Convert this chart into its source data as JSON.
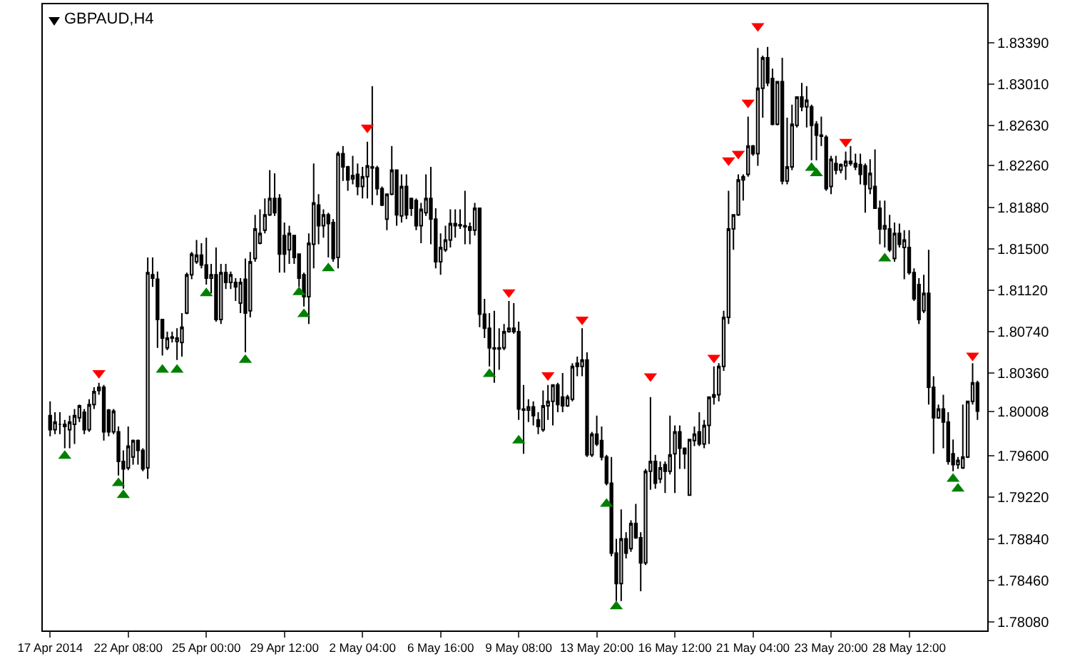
{
  "chart_data": {
    "type": "candlestick",
    "title": "GBPAUD,H4",
    "categories": [
      "17 Apr 2014",
      null,
      null,
      null,
      null,
      null,
      null,
      null,
      null,
      null,
      null,
      null,
      null,
      null,
      null,
      null,
      "22 Apr 08:00",
      null,
      null,
      null,
      null,
      null,
      null,
      null,
      null,
      null,
      null,
      null,
      null,
      null,
      null,
      null,
      "25 Apr 00:00",
      null,
      null,
      null,
      null,
      null,
      null,
      null,
      null,
      null,
      null,
      null,
      null,
      null,
      null,
      null,
      "29 Apr 12:00",
      null,
      null,
      null,
      null,
      null,
      null,
      null,
      null,
      null,
      null,
      null,
      null,
      null,
      null,
      null,
      "2 May 04:00",
      null,
      null,
      null,
      null,
      null,
      null,
      null,
      null,
      null,
      null,
      null,
      null,
      null,
      null,
      null,
      "6 May 16:00",
      null,
      null,
      null,
      null,
      null,
      null,
      null,
      null,
      null,
      null,
      null,
      null,
      null,
      null,
      null,
      "9 May 08:00",
      null,
      null,
      null,
      null,
      null,
      null,
      null,
      null,
      null,
      null,
      null,
      null,
      null,
      null,
      null,
      "13 May 20:00",
      null,
      null,
      null,
      null,
      null,
      null,
      null,
      null,
      null,
      null,
      null,
      null,
      null,
      null,
      null,
      "16 May 12:00",
      null,
      null,
      null,
      null,
      null,
      null,
      null,
      null,
      null,
      null,
      null,
      null,
      null,
      null,
      null,
      "21 May 04:00",
      null,
      null,
      null,
      null,
      null,
      null,
      null,
      null,
      null,
      null,
      null,
      null,
      null,
      null,
      null,
      "23 May 20:00",
      null,
      null,
      null,
      null,
      null,
      null,
      null,
      null,
      null,
      null,
      null,
      null,
      null,
      null,
      null,
      "28 May 12:00",
      null,
      null,
      null,
      null,
      null,
      null,
      null,
      null,
      null,
      null,
      null,
      null,
      null,
      null
    ],
    "ohlc": [
      [
        1.7997,
        1.801,
        1.7978,
        1.7984
      ],
      [
        1.7984,
        1.8,
        1.798,
        1.7991
      ],
      [
        1.7989,
        1.8,
        1.798,
        1.7989
      ],
      [
        1.7989,
        1.7993,
        1.7967,
        1.7987
      ],
      [
        1.7984,
        1.7997,
        1.7967,
        1.7991
      ],
      [
        1.7989,
        1.8003,
        1.7971,
        1.7997
      ],
      [
        1.7995,
        1.8007,
        1.7991,
        1.8006
      ],
      [
        1.8,
        1.8003,
        1.798,
        1.7984
      ],
      [
        1.7984,
        1.8012,
        1.7982,
        1.8007
      ],
      [
        1.8007,
        1.8023,
        1.8003,
        1.8019
      ],
      [
        1.802,
        1.8027,
        1.8016,
        1.8023
      ],
      [
        1.8023,
        1.8025,
        1.7974,
        1.7982
      ],
      [
        1.8002,
        1.8003,
        1.7978,
        1.7982
      ],
      [
        1.7982,
        1.8003,
        1.798,
        1.8001
      ],
      [
        1.7982,
        1.7987,
        1.7942,
        1.7955
      ],
      [
        1.7955,
        1.7965,
        1.793,
        1.7948
      ],
      [
        1.7949,
        1.7987,
        1.7947,
        1.7969
      ],
      [
        1.7959,
        1.7975,
        1.7952,
        1.7974
      ],
      [
        1.7974,
        1.7975,
        1.7952,
        1.7965
      ],
      [
        1.7965,
        1.7967,
        1.7946,
        1.7948
      ],
      [
        1.7949,
        1.8142,
        1.7939,
        1.8128
      ],
      [
        1.8126,
        1.8142,
        1.8115,
        1.8123
      ],
      [
        1.8122,
        1.8129,
        1.8059,
        1.8085
      ],
      [
        1.8085,
        1.8085,
        1.8052,
        1.8068
      ],
      [
        1.8059,
        1.8074,
        1.8057,
        1.8068
      ],
      [
        1.8069,
        1.8074,
        1.8064,
        1.8068
      ],
      [
        1.8065,
        1.8077,
        1.8048,
        1.8068
      ],
      [
        1.8064,
        1.8091,
        1.8051,
        1.8078
      ],
      [
        1.8091,
        1.8128,
        1.809,
        1.8126
      ],
      [
        1.8126,
        1.8147,
        1.8122,
        1.8145
      ],
      [
        1.8138,
        1.8158,
        1.8136,
        1.8144
      ],
      [
        1.8144,
        1.8155,
        1.8132,
        1.8135
      ],
      [
        1.8135,
        1.816,
        1.8117,
        1.8123
      ],
      [
        1.8123,
        1.8136,
        1.8109,
        1.8126
      ],
      [
        1.8126,
        1.8151,
        1.8083,
        1.8085
      ],
      [
        1.8085,
        1.8136,
        1.8081,
        1.8128
      ],
      [
        1.8128,
        1.8136,
        1.8113,
        1.8119
      ],
      [
        1.8119,
        1.8129,
        1.8113,
        1.8126
      ],
      [
        1.8119,
        1.8123,
        1.8102,
        1.8115
      ],
      [
        1.81,
        1.8123,
        1.8091,
        1.8119
      ],
      [
        1.8122,
        1.8141,
        1.8055,
        1.8091
      ],
      [
        1.8093,
        1.8147,
        1.8087,
        1.8138
      ],
      [
        1.8141,
        1.8181,
        1.8138,
        1.8168
      ],
      [
        1.8155,
        1.8186,
        1.8154,
        1.8164
      ],
      [
        1.8167,
        1.8196,
        1.8164,
        1.8181
      ],
      [
        1.8181,
        1.8222,
        1.818,
        1.8196
      ],
      [
        1.8196,
        1.8219,
        1.818,
        1.8183
      ],
      [
        1.8196,
        1.82,
        1.8128,
        1.8145
      ],
      [
        1.8162,
        1.8174,
        1.8128,
        1.8145
      ],
      [
        1.8149,
        1.8171,
        1.8136,
        1.8164
      ],
      [
        1.8162,
        1.8162,
        1.8136,
        1.8142
      ],
      [
        1.8145,
        1.8145,
        1.8115,
        1.8123
      ],
      [
        1.8126,
        1.8128,
        1.8097,
        1.8106
      ],
      [
        1.8106,
        1.8164,
        1.8081,
        1.8155
      ],
      [
        1.8154,
        1.8228,
        1.8132,
        1.8192
      ],
      [
        1.819,
        1.82,
        1.8154,
        1.8171
      ],
      [
        1.8171,
        1.8186,
        1.816,
        1.8181
      ],
      [
        1.8181,
        1.8183,
        1.8142,
        1.8173
      ],
      [
        1.8174,
        1.8177,
        1.8138,
        1.8141
      ],
      [
        1.8142,
        1.8239,
        1.8132,
        1.8237
      ],
      [
        1.8237,
        1.8244,
        1.8212,
        1.8225
      ],
      [
        1.8225,
        1.8226,
        1.8203,
        1.8213
      ],
      [
        1.8214,
        1.8235,
        1.8209,
        1.8217
      ],
      [
        1.8218,
        1.8228,
        1.8199,
        1.8207
      ],
      [
        1.8207,
        1.8225,
        1.8196,
        1.8216
      ],
      [
        1.8216,
        1.8248,
        1.8196,
        1.8226
      ],
      [
        1.8225,
        1.8299,
        1.819,
        1.8224
      ],
      [
        1.8224,
        1.8226,
        1.8199,
        1.8205
      ],
      [
        1.8205,
        1.8207,
        1.8189,
        1.819
      ],
      [
        1.8177,
        1.82,
        1.8167,
        1.82
      ],
      [
        1.82,
        1.8244,
        1.8199,
        1.8222
      ],
      [
        1.8222,
        1.8222,
        1.8171,
        1.8181
      ],
      [
        1.818,
        1.8218,
        1.8174,
        1.8207
      ],
      [
        1.8207,
        1.8218,
        1.8177,
        1.8181
      ],
      [
        1.8196,
        1.8196,
        1.818,
        1.8187
      ],
      [
        1.8194,
        1.8196,
        1.8167,
        1.8171
      ],
      [
        1.8171,
        1.8192,
        1.8155,
        1.8186
      ],
      [
        1.8183,
        1.8218,
        1.818,
        1.8196
      ],
      [
        1.8196,
        1.8225,
        1.8154,
        1.8177
      ],
      [
        1.8177,
        1.8187,
        1.8132,
        1.8138
      ],
      [
        1.8138,
        1.8164,
        1.8126,
        1.8151
      ],
      [
        1.8149,
        1.8171,
        1.8147,
        1.8158
      ],
      [
        1.8158,
        1.8186,
        1.8151,
        1.8173
      ],
      [
        1.8173,
        1.8186,
        1.816,
        1.8171
      ],
      [
        1.8172,
        1.8186,
        1.8168,
        1.8171
      ],
      [
        1.8171,
        1.8203,
        1.8154,
        1.817
      ],
      [
        1.817,
        1.8174,
        1.8154,
        1.8167
      ],
      [
        1.8167,
        1.8192,
        1.8162,
        1.8187
      ],
      [
        1.8187,
        1.8187,
        1.8078,
        1.809
      ],
      [
        1.809,
        1.8104,
        1.8068,
        1.8077
      ],
      [
        1.8077,
        1.8091,
        1.8042,
        1.8059
      ],
      [
        1.8059,
        1.8093,
        1.8027,
        1.8058
      ],
      [
        1.8058,
        1.8077,
        1.8039,
        1.8059
      ],
      [
        1.8059,
        1.8081,
        1.8057,
        1.8074
      ],
      [
        1.8074,
        1.8102,
        1.8073,
        1.8077
      ],
      [
        1.8077,
        1.81,
        1.8072,
        1.8074
      ],
      [
        1.8074,
        1.8083,
        1.7993,
        1.8003
      ],
      [
        1.8003,
        1.8025,
        1.7962,
        1.8002
      ],
      [
        1.8002,
        1.8012,
        1.7991,
        1.8005
      ],
      [
        1.8005,
        1.801,
        1.7988,
        1.7997
      ],
      [
        1.7993,
        1.8,
        1.798,
        1.7987
      ],
      [
        1.7984,
        1.802,
        1.7982,
        1.8006
      ],
      [
        1.8006,
        1.8025,
        1.7993,
        1.801
      ],
      [
        1.801,
        1.8025,
        1.7988,
        1.8025
      ],
      [
        1.8025,
        1.8027,
        1.8,
        1.8007
      ],
      [
        1.8014,
        1.8036,
        1.8,
        1.8006
      ],
      [
        1.8006,
        1.8016,
        1.8005,
        1.8014
      ],
      [
        1.8012,
        1.8045,
        1.801,
        1.8042
      ],
      [
        1.8045,
        1.8051,
        1.8033,
        1.8042
      ],
      [
        1.8042,
        1.8077,
        1.8033,
        1.8048
      ],
      [
        1.8048,
        1.8055,
        1.7959,
        1.7961
      ],
      [
        1.7961,
        1.7982,
        1.7959,
        1.798
      ],
      [
        1.798,
        1.7997,
        1.7969,
        1.7971
      ],
      [
        1.7974,
        1.7987,
        1.7956,
        1.7959
      ],
      [
        1.7959,
        1.7961,
        1.7933,
        1.7935
      ],
      [
        1.7935,
        1.7959,
        1.7868,
        1.7871
      ],
      [
        1.7871,
        1.7884,
        1.7827,
        1.7843
      ],
      [
        1.7843,
        1.7911,
        1.7827,
        1.7884
      ],
      [
        1.7884,
        1.789,
        1.7866,
        1.7871
      ],
      [
        1.7875,
        1.7901,
        1.7872,
        1.7898
      ],
      [
        1.7898,
        1.7916,
        1.7884,
        1.7885
      ],
      [
        1.7885,
        1.789,
        1.7836,
        1.7862
      ],
      [
        1.7862,
        1.7948,
        1.786,
        1.7946
      ],
      [
        1.7946,
        1.8014,
        1.7929,
        1.7955
      ],
      [
        1.7955,
        1.7961,
        1.793,
        1.7935
      ],
      [
        1.7939,
        1.7955,
        1.7935,
        1.7949
      ],
      [
        1.7952,
        1.7955,
        1.7926,
        1.7946
      ],
      [
        1.7946,
        1.7997,
        1.7943,
        1.7961
      ],
      [
        1.7962,
        1.7988,
        1.7926,
        1.7982
      ],
      [
        1.7982,
        1.7988,
        1.7948,
        1.7967
      ],
      [
        1.7967,
        1.7967,
        1.7948,
        1.7962
      ],
      [
        1.7924,
        1.7975,
        1.7924,
        1.7975
      ],
      [
        1.7974,
        1.7987,
        1.7969,
        1.798
      ],
      [
        1.7982,
        1.8,
        1.7969,
        1.7971
      ],
      [
        1.7971,
        1.7993,
        1.7967,
        1.7988
      ],
      [
        1.7988,
        1.8014,
        1.7971,
        1.8014
      ],
      [
        1.8014,
        1.8042,
        1.8007,
        1.8016
      ],
      [
        1.8016,
        1.8045,
        1.801,
        1.8042
      ],
      [
        1.8042,
        1.8093,
        1.8038,
        1.8087
      ],
      [
        1.8087,
        1.8203,
        1.8081,
        1.8168
      ],
      [
        1.8168,
        1.8181,
        1.8149,
        1.8181
      ],
      [
        1.8181,
        1.8218,
        1.818,
        1.8213
      ],
      [
        1.8213,
        1.8218,
        1.8194,
        1.8216
      ],
      [
        1.8218,
        1.8271,
        1.8216,
        1.8244
      ],
      [
        1.8244,
        1.8245,
        1.8235,
        1.8237
      ],
      [
        1.8237,
        1.8334,
        1.8226,
        1.8297
      ],
      [
        1.8297,
        1.8327,
        1.827,
        1.8325
      ],
      [
        1.8325,
        1.8335,
        1.8299,
        1.8302
      ],
      [
        1.8306,
        1.8315,
        1.8263,
        1.8264
      ],
      [
        1.8264,
        1.8303,
        1.8263,
        1.8303
      ],
      [
        1.8303,
        1.8325,
        1.8209,
        1.8212
      ],
      [
        1.8212,
        1.827,
        1.8209,
        1.8225
      ],
      [
        1.8225,
        1.8282,
        1.8222,
        1.8264
      ],
      [
        1.8263,
        1.8289,
        1.8261,
        1.8289
      ],
      [
        1.8289,
        1.8302,
        1.8276,
        1.828
      ],
      [
        1.828,
        1.8299,
        1.8261,
        1.8286
      ],
      [
        1.828,
        1.8282,
        1.8231,
        1.8263
      ],
      [
        1.8264,
        1.8267,
        1.8231,
        1.8254
      ],
      [
        1.8253,
        1.8271,
        1.8244,
        1.8254
      ],
      [
        1.8252,
        1.8254,
        1.8203,
        1.8205
      ],
      [
        1.8207,
        1.8235,
        1.82,
        1.8232
      ],
      [
        1.8228,
        1.8235,
        1.8218,
        1.8222
      ],
      [
        1.8222,
        1.8228,
        1.8219,
        1.8227
      ],
      [
        1.8226,
        1.8239,
        1.8213,
        1.823
      ],
      [
        1.823,
        1.8244,
        1.8226,
        1.8228
      ],
      [
        1.8228,
        1.8237,
        1.8222,
        1.8225
      ],
      [
        1.8227,
        1.8237,
        1.8209,
        1.8218
      ],
      [
        1.8226,
        1.8228,
        1.8183,
        1.8209
      ],
      [
        1.8205,
        1.8232,
        1.82,
        1.8219
      ],
      [
        1.8207,
        1.8241,
        1.8187,
        1.8187
      ],
      [
        1.8187,
        1.8194,
        1.8154,
        1.8168
      ],
      [
        1.8168,
        1.8194,
        1.8151,
        1.8171
      ],
      [
        1.8168,
        1.8181,
        1.8147,
        1.8149
      ],
      [
        1.8141,
        1.8174,
        1.8138,
        1.8164
      ],
      [
        1.8164,
        1.8173,
        1.8151,
        1.8154
      ],
      [
        1.8151,
        1.8167,
        1.8122,
        1.8158
      ],
      [
        1.8151,
        1.8167,
        1.8126,
        1.8128
      ],
      [
        1.8128,
        1.8132,
        1.8102,
        1.8104
      ],
      [
        1.8117,
        1.8123,
        1.8081,
        1.8085
      ],
      [
        1.8093,
        1.8126,
        1.8091,
        1.8109
      ],
      [
        1.8109,
        1.8149,
        1.8007,
        1.8023
      ],
      [
        1.8023,
        1.8033,
        1.7962,
        1.7995
      ],
      [
        1.7995,
        1.8007,
        1.7994,
        1.8003
      ],
      [
        1.8003,
        1.8016,
        1.7967,
        1.7991
      ],
      [
        1.7991,
        1.8,
        1.7952,
        1.7955
      ],
      [
        1.7962,
        1.7975,
        1.7946,
        1.7952
      ],
      [
        1.7952,
        1.7959,
        1.7948,
        1.7956
      ],
      [
        1.7949,
        1.8007,
        1.7948,
        1.7959
      ],
      [
        1.7959,
        1.801,
        1.7958,
        1.801
      ],
      [
        1.801,
        1.8045,
        1.8007,
        1.8027
      ],
      [
        1.8027,
        1.8029,
        1.7993,
        1.8001
      ]
    ],
    "series": [
      {
        "type": "scatter",
        "color": "#ff0000",
        "marker": "triangle",
        "values": [
          null,
          null,
          null,
          null,
          null,
          null,
          null,
          null,
          null,
          null,
          1.8036,
          null,
          null,
          null,
          null,
          null,
          null,
          null,
          null,
          null,
          null,
          null,
          null,
          null,
          null,
          null,
          null,
          null,
          null,
          null,
          null,
          null,
          null,
          null,
          null,
          null,
          null,
          null,
          null,
          null,
          null,
          null,
          null,
          null,
          null,
          null,
          null,
          null,
          null,
          null,
          null,
          null,
          null,
          null,
          null,
          null,
          null,
          null,
          null,
          null,
          null,
          null,
          null,
          null,
          null,
          1.8261,
          null,
          null,
          null,
          null,
          null,
          null,
          null,
          null,
          null,
          null,
          null,
          null,
          null,
          null,
          null,
          null,
          null,
          null,
          null,
          null,
          null,
          null,
          null,
          null,
          null,
          null,
          null,
          null,
          1.811,
          null,
          null,
          null,
          null,
          null,
          null,
          null,
          1.8034,
          null,
          null,
          null,
          null,
          null,
          null,
          1.8085,
          null,
          null,
          null,
          null,
          null,
          null,
          null,
          null,
          null,
          null,
          null,
          null,
          null,
          1.8033,
          null,
          null,
          null,
          null,
          null,
          null,
          null,
          null,
          null,
          null,
          null,
          null,
          1.805,
          null,
          null,
          1.8231,
          null,
          1.8237,
          null,
          1.8284,
          null,
          1.8354,
          null,
          null,
          null,
          null,
          null,
          null,
          null,
          null,
          null,
          null,
          null,
          null,
          null,
          null,
          null,
          null,
          null,
          1.8248,
          null,
          null,
          null,
          null,
          null,
          null,
          null,
          null,
          null,
          null,
          null,
          null,
          null,
          null,
          null,
          null,
          null,
          null,
          null,
          null,
          null,
          null,
          null,
          null,
          null,
          1.8052,
          null
        ]
      },
      {
        "type": "scatter",
        "color": "#008000",
        "marker": "triangle",
        "values": [
          null,
          null,
          null,
          1.796,
          null,
          null,
          null,
          null,
          null,
          null,
          null,
          null,
          null,
          null,
          1.7935,
          1.7924,
          null,
          null,
          null,
          null,
          null,
          null,
          null,
          1.8039,
          null,
          null,
          1.8039,
          null,
          null,
          null,
          null,
          null,
          1.8109,
          null,
          null,
          null,
          null,
          null,
          null,
          null,
          1.8048,
          null,
          null,
          null,
          null,
          null,
          null,
          null,
          null,
          null,
          null,
          1.811,
          1.809,
          null,
          null,
          null,
          null,
          1.8132,
          null,
          null,
          null,
          null,
          null,
          null,
          null,
          null,
          null,
          null,
          null,
          null,
          null,
          null,
          null,
          null,
          null,
          null,
          null,
          null,
          null,
          null,
          null,
          null,
          null,
          null,
          null,
          null,
          null,
          null,
          null,
          null,
          1.8035,
          null,
          null,
          null,
          null,
          null,
          1.7974,
          null,
          null,
          null,
          null,
          null,
          null,
          null,
          null,
          null,
          null,
          null,
          null,
          null,
          null,
          null,
          null,
          null,
          1.7916,
          null,
          1.7822,
          null,
          null,
          null,
          null,
          null,
          null,
          null,
          null,
          null,
          null,
          null,
          null,
          null,
          null,
          null,
          null,
          null,
          null,
          null,
          null,
          null,
          null,
          null,
          null,
          null,
          null,
          null,
          null,
          null,
          null,
          null,
          null,
          null,
          null,
          null,
          null,
          null,
          null,
          null,
          1.8224,
          1.8219,
          null,
          null,
          null,
          null,
          null,
          null,
          null,
          null,
          null,
          null,
          null,
          null,
          null,
          1.8141,
          null,
          null,
          null,
          null,
          null,
          null,
          null,
          null,
          null,
          null,
          null,
          null,
          null,
          1.7939,
          1.793,
          null,
          null,
          null,
          null
        ]
      }
    ],
    "ylim": [
      1.78,
      1.8374
    ],
    "yticks": [
      {
        "value": 1.8339,
        "label": "1.83390"
      },
      {
        "value": 1.8301,
        "label": "1.83010"
      },
      {
        "value": 1.8263,
        "label": "1.82630"
      },
      {
        "value": 1.8226,
        "label": "1.82260"
      },
      {
        "value": 1.8188,
        "label": "1.81880"
      },
      {
        "value": 1.815,
        "label": "1.81500"
      },
      {
        "value": 1.8112,
        "label": "1.81120"
      },
      {
        "value": 1.8074,
        "label": "1.80740"
      },
      {
        "value": 1.8036,
        "label": "1.80360"
      },
      {
        "value": 1.80008,
        "label": "1.80008"
      },
      {
        "value": 1.796,
        "label": "1.79600"
      },
      {
        "value": 1.7922,
        "label": "1.79220"
      },
      {
        "value": 1.7884,
        "label": "1.78840"
      },
      {
        "value": 1.7846,
        "label": "1.78460"
      },
      {
        "value": 1.7808,
        "label": "1.78080"
      }
    ],
    "grid": false
  }
}
